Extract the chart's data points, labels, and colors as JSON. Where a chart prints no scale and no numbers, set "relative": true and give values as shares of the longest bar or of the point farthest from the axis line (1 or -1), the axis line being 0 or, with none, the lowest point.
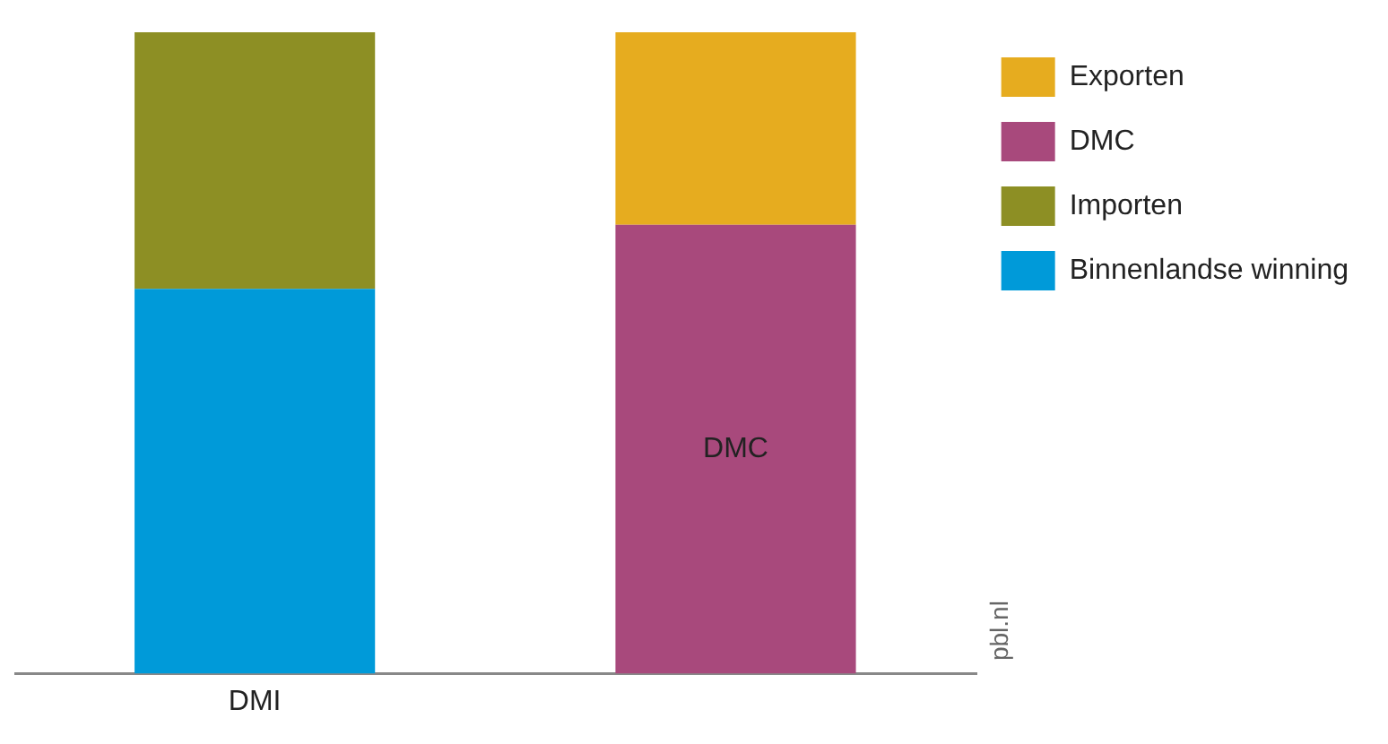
{
  "chart_data": {
    "type": "bar",
    "relative": true,
    "stacked": true,
    "categories": [
      "DMI",
      null
    ],
    "series": [
      {
        "name": "Binnenlandse winning",
        "color": "#009ad9",
        "values": [
          0.6,
          null
        ]
      },
      {
        "name": "Importen",
        "color": "#8d8f24",
        "values": [
          0.4,
          null
        ]
      },
      {
        "name": "DMC",
        "color": "#a8497c",
        "values": [
          null,
          0.7
        ]
      },
      {
        "name": "Exporten",
        "color": "#e6ac1f",
        "values": [
          null,
          0.3
        ]
      }
    ],
    "legend": "top right",
    "grid": false,
    "annotations": [
      "DMC",
      "pbl.nl"
    ]
  }
}
